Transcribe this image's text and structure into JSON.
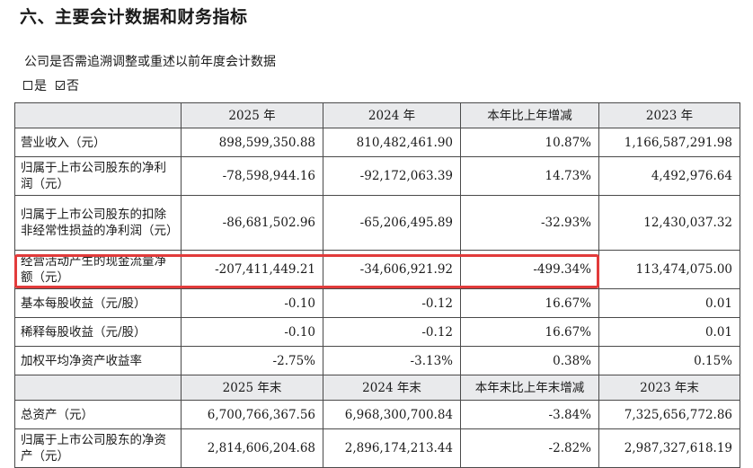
{
  "heading": "六、主要会计数据和财务指标",
  "subtitle": "公司是否需追溯调整或重述以前年度会计数据",
  "choices": [
    {
      "label": "是",
      "checked": false
    },
    {
      "label": "否",
      "checked": true
    }
  ],
  "header1": [
    "",
    "2025 年",
    "2024 年",
    "本年比上年增减",
    "2023 年"
  ],
  "rows1": [
    {
      "label": "营业收入（元）",
      "values": [
        "898,599,350.88",
        "810,482,461.90",
        "10.87%",
        "1,166,587,291.98"
      ]
    },
    {
      "label": "归属于上市公司股东的净利润（元）",
      "values": [
        "-78,598,944.16",
        "-92,172,063.39",
        "14.73%",
        "4,492,976.64"
      ]
    },
    {
      "label": "归属于上市公司股东的扣除非经常性损益的净利润（元）",
      "values": [
        "-86,681,502.96",
        "-65,206,495.89",
        "-32.93%",
        "12,430,037.32"
      ]
    },
    {
      "label": "经营活动产生的现金流量净额（元）",
      "values": [
        "-207,411,449.21",
        "-34,606,921.92",
        "-499.34%",
        "113,474,075.00"
      ]
    },
    {
      "label": "基本每股收益（元/股）",
      "values": [
        "-0.10",
        "-0.12",
        "16.67%",
        "0.01"
      ]
    },
    {
      "label": "稀释每股收益（元/股）",
      "values": [
        "-0.10",
        "-0.12",
        "16.67%",
        "0.01"
      ]
    },
    {
      "label": "加权平均净资产收益率",
      "values": [
        "-2.75%",
        "-3.13%",
        "0.38%",
        "0.15%"
      ]
    }
  ],
  "header2": [
    "",
    "2025 年末",
    "2024 年末",
    "本年末比上年末增减",
    "2023 年末"
  ],
  "rows2": [
    {
      "label": "总资产（元）",
      "values": [
        "6,700,766,367.56",
        "6,968,300,700.84",
        "-3.84%",
        "7,325,656,772.86"
      ]
    },
    {
      "label": "归属于上市公司股东的净资产（元）",
      "values": [
        "2,814,606,204.68",
        "2,896,174,213.44",
        "-2.82%",
        "2,987,327,618.19"
      ]
    }
  ],
  "highlight_color": "#e23b3b"
}
